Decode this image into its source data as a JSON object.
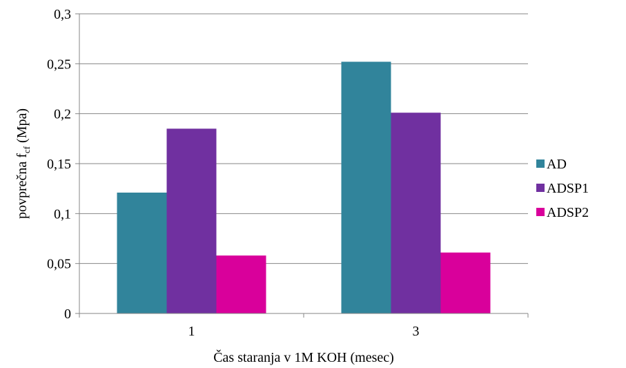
{
  "chart_data": {
    "type": "bar",
    "categories": [
      "1",
      "3"
    ],
    "series": [
      {
        "name": "AD",
        "values": [
          0.121,
          0.252
        ],
        "color": "#31849b"
      },
      {
        "name": "ADSP1",
        "values": [
          0.185,
          0.201
        ],
        "color": "#7030a0"
      },
      {
        "name": "ADSP2",
        "values": [
          0.058,
          0.061
        ],
        "color": "#d9009b"
      }
    ],
    "title": "",
    "xlabel": "Čas staranja v 1M KOH (mesec)",
    "ylabel": {
      "main": "povprečna  f",
      "sub": "cf",
      "unit": " (Mpa)"
    },
    "ylim": [
      0,
      0.3
    ],
    "yticks": [
      0,
      0.05,
      0.1,
      0.15,
      0.2,
      0.25,
      0.3
    ],
    "ytick_labels": [
      "0",
      "0,05",
      "0,1",
      "0,15",
      "0,2",
      "0,25",
      "0,3"
    ],
    "grid": true,
    "legend_position": "right"
  }
}
